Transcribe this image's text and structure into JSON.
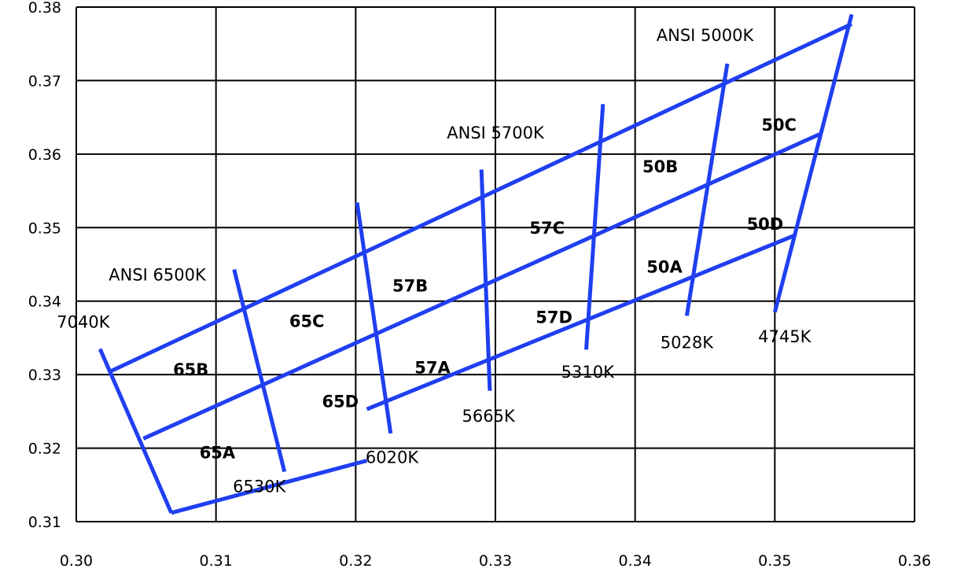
{
  "chart_data": {
    "type": "line",
    "title": "",
    "xlabel": "",
    "ylabel": "",
    "xlim": [
      0.3,
      0.36
    ],
    "ylim": [
      0.31,
      0.38
    ],
    "grid": true,
    "x_ticks": [
      "0.30",
      "0.31",
      "0.32",
      "0.33",
      "0.34",
      "0.35",
      "0.36"
    ],
    "y_ticks": [
      "0.38",
      "0.37",
      "0.36",
      "0.35",
      "0.34",
      "0.33",
      "0.32",
      "0.31"
    ],
    "line_color": "#1f3ff0",
    "boundary_lines": [
      {
        "name": "top-edge",
        "x": [
          0.3025,
          0.3555
        ],
        "y": [
          0.3305,
          0.3777
        ]
      },
      {
        "name": "upper-mid",
        "x": [
          0.3048,
          0.3532
        ],
        "y": [
          0.3213,
          0.3627
        ]
      },
      {
        "name": "lower-mid",
        "x": [
          0.3208,
          0.3515
        ],
        "y": [
          0.3253,
          0.349
        ]
      },
      {
        "name": "bottom-edge",
        "x": [
          0.3068,
          0.3208
        ],
        "y": [
          0.3112,
          0.3183
        ]
      },
      {
        "name": "7040K",
        "x": [
          0.3017,
          0.3068
        ],
        "y": [
          0.3335,
          0.3112
        ]
      },
      {
        "name": "6530K",
        "x": [
          0.3113,
          0.3149
        ],
        "y": [
          0.3443,
          0.3168
        ]
      },
      {
        "name": "6020K",
        "x": [
          0.3201,
          0.3225
        ],
        "y": [
          0.3534,
          0.322
        ]
      },
      {
        "name": "5665K",
        "x": [
          0.329,
          0.3296
        ],
        "y": [
          0.3579,
          0.3278
        ]
      },
      {
        "name": "5310K",
        "x": [
          0.3377,
          0.3365
        ],
        "y": [
          0.3668,
          0.3334
        ]
      },
      {
        "name": "5028K",
        "x": [
          0.3466,
          0.3437
        ],
        "y": [
          0.3723,
          0.338
        ]
      },
      {
        "name": "4745K",
        "x": [
          0.3555,
          0.35
        ],
        "y": [
          0.379,
          0.3385
        ]
      }
    ],
    "cct_labels": [
      {
        "text": "ANSI 6500K",
        "x": 0.3058,
        "y": 0.3428
      },
      {
        "text": "ANSI 5700K",
        "x": 0.33,
        "y": 0.3621
      },
      {
        "text": "ANSI 5000K",
        "x": 0.345,
        "y": 0.3754
      },
      {
        "text": "7040K",
        "x": 0.3005,
        "y": 0.3364
      },
      {
        "text": "6530K",
        "x": 0.3131,
        "y": 0.314
      },
      {
        "text": "6020K",
        "x": 0.3226,
        "y": 0.318
      },
      {
        "text": "5665K",
        "x": 0.3295,
        "y": 0.3236
      },
      {
        "text": "5310K",
        "x": 0.3366,
        "y": 0.3296
      },
      {
        "text": "5028K",
        "x": 0.3437,
        "y": 0.3336
      },
      {
        "text": "4745K",
        "x": 0.3507,
        "y": 0.3344
      }
    ],
    "bin_labels": [
      {
        "text": "65A",
        "x": 0.3101,
        "y": 0.3186
      },
      {
        "text": "65B",
        "x": 0.3082,
        "y": 0.3299
      },
      {
        "text": "65C",
        "x": 0.3165,
        "y": 0.3365
      },
      {
        "text": "65D",
        "x": 0.3189,
        "y": 0.3256
      },
      {
        "text": "57A",
        "x": 0.3255,
        "y": 0.3302
      },
      {
        "text": "57B",
        "x": 0.3239,
        "y": 0.3413
      },
      {
        "text": "57C",
        "x": 0.3337,
        "y": 0.3492
      },
      {
        "text": "57D",
        "x": 0.3342,
        "y": 0.337
      },
      {
        "text": "50A",
        "x": 0.3421,
        "y": 0.3439
      },
      {
        "text": "50B",
        "x": 0.3418,
        "y": 0.3575
      },
      {
        "text": "50C",
        "x": 0.3503,
        "y": 0.3632
      },
      {
        "text": "50D",
        "x": 0.3493,
        "y": 0.3497
      }
    ]
  }
}
